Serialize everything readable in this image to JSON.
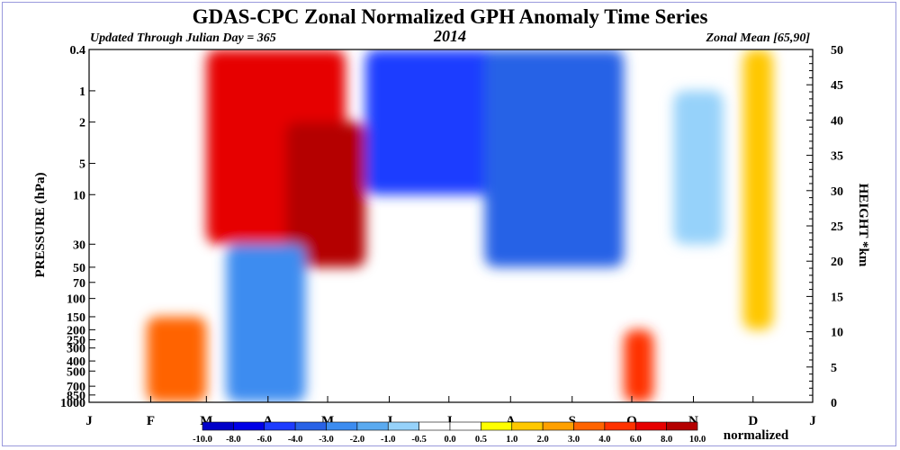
{
  "chart_data": {
    "type": "heatmap",
    "title": "GDAS-CPC Zonal Normalized GPH Anomaly Time Series",
    "subtitle_left": "Updated Through Julian Day = 365",
    "subtitle_center": "2014",
    "subtitle_right": "Zonal Mean [65,90]",
    "ylabel": "PRESSURE (hPa)",
    "ylabel_right": "HEIGHT *km",
    "y_scale": "log",
    "ylim": [
      1000,
      0.4
    ],
    "y_ticks_left": [
      "0.4",
      "1",
      "2",
      "5",
      "10",
      "30",
      "50",
      "70",
      "100",
      "150",
      "200",
      "250",
      "300",
      "400",
      "500",
      "700",
      "850",
      "1000"
    ],
    "y_tick_values_left": [
      0.4,
      1,
      2,
      5,
      10,
      30,
      50,
      70,
      100,
      150,
      200,
      250,
      300,
      400,
      500,
      700,
      850,
      1000
    ],
    "y_ticks_right": [
      "0",
      "5",
      "10",
      "15",
      "20",
      "25",
      "30",
      "35",
      "40",
      "45",
      "50"
    ],
    "x_ticks": [
      "J",
      "F",
      "M",
      "A",
      "M",
      "J",
      "J",
      "A",
      "S",
      "O",
      "N",
      "D",
      "J"
    ],
    "x_tick_days": [
      1,
      32,
      60,
      91,
      121,
      152,
      182,
      213,
      244,
      274,
      305,
      335,
      365
    ],
    "xlim": [
      1,
      365
    ],
    "colorbar": {
      "label": "normalized",
      "levels": [
        "-10.0",
        "-8.0",
        "-6.0",
        "-4.0",
        "-3.0",
        "-2.0",
        "-1.0",
        "-0.5",
        "0.0",
        "0.5",
        "1.0",
        "2.0",
        "3.0",
        "4.0",
        "6.0",
        "8.0",
        "10.0"
      ],
      "colors": [
        "#0000c8",
        "#0000e6",
        "#1e3cff",
        "#2862e6",
        "#3c8cf0",
        "#5aaaf0",
        "#96d2fa",
        "#ffffff",
        "#ffffff",
        "#ffff00",
        "#ffc800",
        "#ffa000",
        "#ff6400",
        "#ff3200",
        "#e60000",
        "#b40000"
      ]
    },
    "anomaly_features": [
      {
        "day_start": 60,
        "day_end": 130,
        "p_top": 0.4,
        "p_bottom": 30,
        "value": 6.0
      },
      {
        "day_start": 100,
        "day_end": 140,
        "p_top": 2,
        "p_bottom": 50,
        "value": 8.0
      },
      {
        "day_start": 140,
        "day_end": 255,
        "p_top": 0.4,
        "p_bottom": 10,
        "value": -6.0
      },
      {
        "day_start": 200,
        "day_end": 270,
        "p_top": 0.4,
        "p_bottom": 50,
        "value": -4.0
      },
      {
        "day_start": 30,
        "day_end": 60,
        "p_top": 150,
        "p_bottom": 1000,
        "value": 3.0
      },
      {
        "day_start": 70,
        "day_end": 110,
        "p_top": 30,
        "p_bottom": 1000,
        "value": -3.0
      },
      {
        "day_start": 270,
        "day_end": 285,
        "p_top": 200,
        "p_bottom": 1000,
        "value": 4.0
      },
      {
        "day_start": 295,
        "day_end": 320,
        "p_top": 1,
        "p_bottom": 30,
        "value": -1.0
      },
      {
        "day_start": 330,
        "day_end": 345,
        "p_top": 0.4,
        "p_bottom": 200,
        "value": 1.0
      }
    ]
  }
}
